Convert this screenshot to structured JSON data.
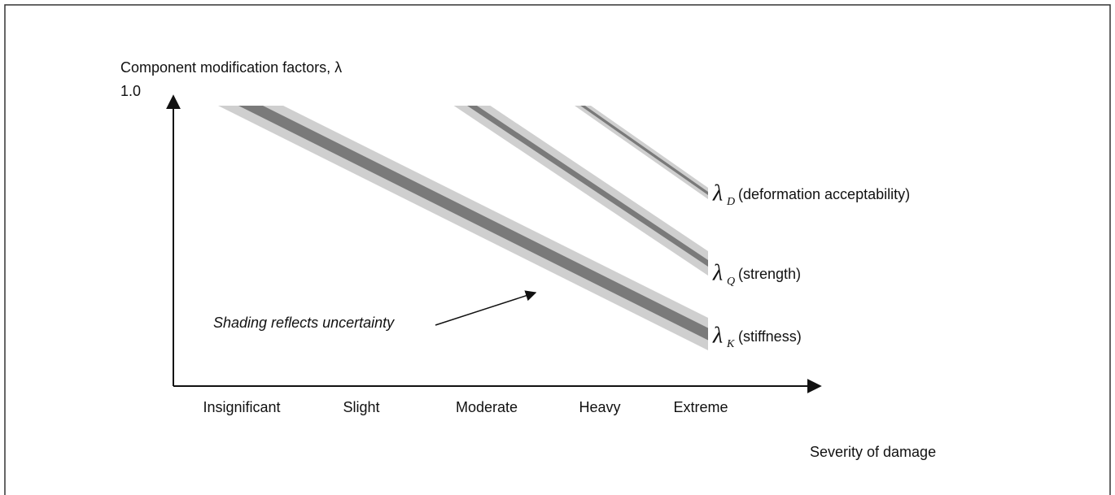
{
  "axis_title": "Component  modification factors, λ",
  "y_top_label": "1.0",
  "x_title": "Severity of damage",
  "x_categories": [
    "Insignificant",
    "Slight",
    "Moderate",
    "Heavy",
    "Extreme"
  ],
  "annotation": "Shading reflects uncertainty",
  "bands": [
    {
      "symbol": "λ",
      "subscript": "D",
      "text": "(deformation acceptability)"
    },
    {
      "symbol": "λ",
      "subscript": "Q",
      "text": "(strength)"
    },
    {
      "symbol": "λ",
      "subscript": "K",
      "text": "(stiffness)"
    }
  ]
}
